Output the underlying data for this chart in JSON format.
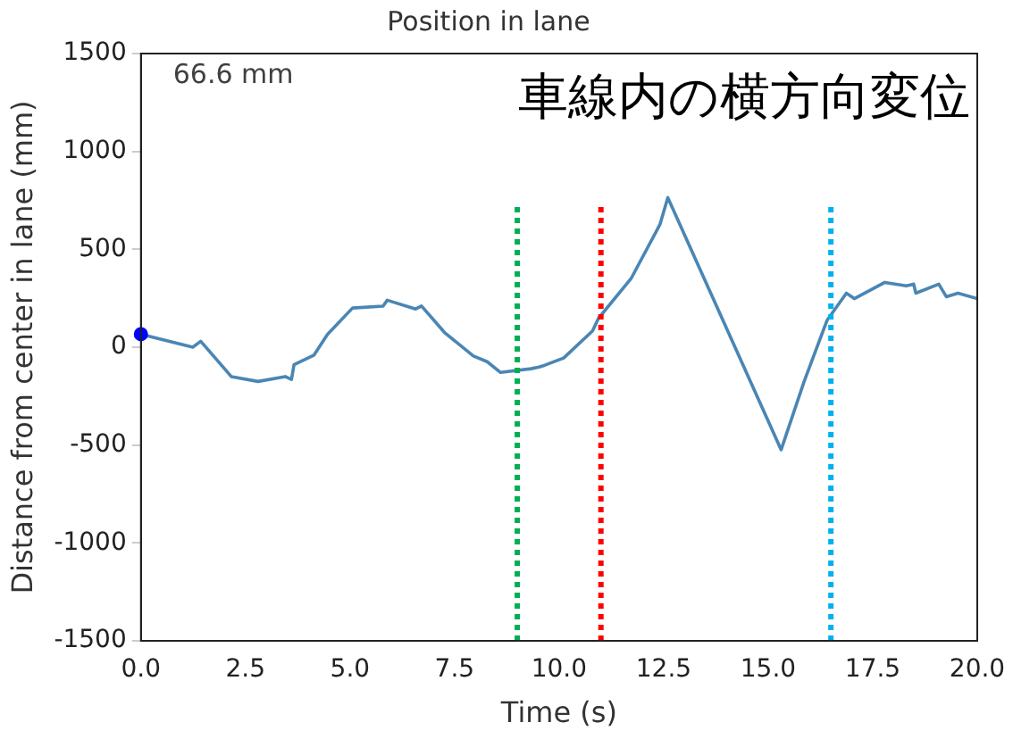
{
  "chart_data": {
    "type": "line",
    "title": "Position in lane",
    "xlabel": "Time (s)",
    "ylabel": "Distance from center in lane (mm)",
    "annotations": [
      "66.6 mm",
      "車線内の横方向変位"
    ],
    "xlim": [
      0,
      20
    ],
    "xticks": [
      {
        "value": 0,
        "label": "0.0"
      },
      {
        "value": 2.5,
        "label": "2.5"
      },
      {
        "value": 5,
        "label": "5.0"
      },
      {
        "value": 7.5,
        "label": "7.5"
      },
      {
        "value": 10,
        "label": "10.0"
      },
      {
        "value": 12.5,
        "label": "12.5"
      },
      {
        "value": 15,
        "label": "15.0"
      },
      {
        "value": 17.5,
        "label": "17.5"
      },
      {
        "value": 20,
        "label": "20.0"
      }
    ],
    "ylim": [
      -1500,
      1500
    ],
    "yticks": [
      -1500,
      -1000,
      -500,
      0,
      500,
      1000,
      1500
    ],
    "grid": false,
    "legend": false,
    "marker": "none",
    "line_style": "solid",
    "series": [
      {
        "color": "#4a86b4",
        "x": [
          0,
          1.24,
          1.43,
          2.16,
          2.8,
          3.45,
          3.6,
          3.66,
          4.14,
          4.46,
          5.06,
          5.79,
          5.89,
          6.57,
          6.71,
          7.26,
          7.95,
          8.28,
          8.6,
          9.33,
          9.52,
          9.66,
          10.11,
          10.8,
          10.94,
          11.72,
          12.41,
          12.6,
          15.31,
          15.86,
          16.41,
          16.87,
          17.06,
          17.79,
          18.3,
          18.48,
          18.53,
          19.08,
          19.26,
          19.54,
          20
        ],
        "values": [
          66.6,
          0,
          30,
          -150,
          -175,
          -150,
          -165,
          -90,
          -40,
          65,
          200,
          210,
          240,
          195,
          210,
          75,
          -45,
          -74,
          -129,
          -110,
          -101,
          -92,
          -55,
          83,
          147,
          350,
          626,
          764,
          -524,
          -175,
          138,
          276,
          248,
          331,
          313,
          322,
          276,
          322,
          258,
          276,
          248
        ]
      },
      {
        "type": "scatter",
        "color": "#0000ff",
        "marker": "circle",
        "x": [
          0
        ],
        "values": [
          66.6
        ]
      }
    ],
    "ref_lines": [
      {
        "axis": "x",
        "value": 9,
        "color": "#00b050",
        "line_style": "dotted"
      },
      {
        "axis": "x",
        "value": 11,
        "color": "#ff0000",
        "line_style": "dotted"
      },
      {
        "axis": "x",
        "value": 16.5,
        "color": "#00b0f0",
        "line_style": "dotted"
      }
    ]
  }
}
